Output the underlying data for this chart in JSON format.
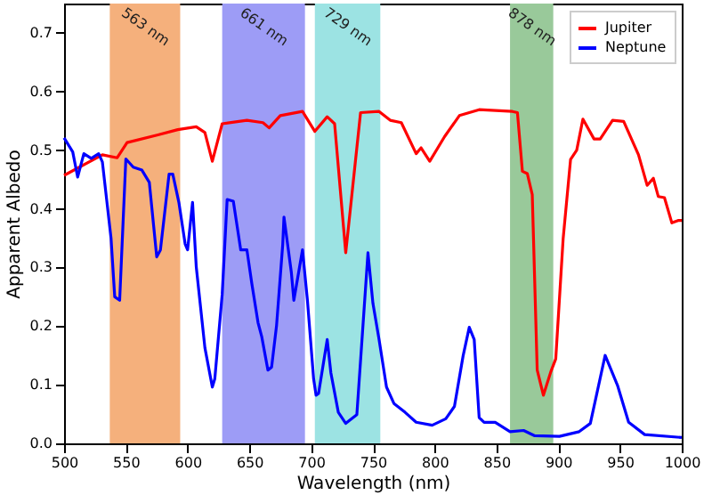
{
  "chart_data": {
    "type": "line",
    "xlabel": "Wavelength (nm)",
    "ylabel": "Apparent Albedo",
    "xlim": [
      500,
      1000
    ],
    "xticks": [
      500,
      550,
      600,
      650,
      700,
      750,
      800,
      850,
      900,
      950,
      {
        "value": 1000,
        "label": "1000"
      }
    ],
    "ylim": [
      0,
      0.75
    ],
    "yticks": [
      {
        "value": 0,
        "label": "0.0"
      },
      0.1,
      0.2,
      0.3,
      0.4,
      0.5,
      0.6,
      0.7
    ],
    "grid": false,
    "legend": "top right",
    "line_style": "solid",
    "marker": "none",
    "bands": [
      {
        "axis": "x",
        "from": 537,
        "to": 594,
        "label": "563 nm",
        "color": "#f5b07c"
      },
      {
        "axis": "x",
        "from": 628,
        "to": 695,
        "label": "661 nm",
        "color": "#9d9cf6"
      },
      {
        "axis": "x",
        "from": 703,
        "to": 756,
        "label": "729 nm",
        "color": "#9ce3e3"
      },
      {
        "axis": "x",
        "from": 861,
        "to": 896,
        "label": "878 nm",
        "color": "#99c99a"
      }
    ],
    "series": [
      {
        "name": "Jupiter",
        "color": "#ff0000",
        "x": [
          500,
          531,
          543,
          551,
          576,
          592,
          607,
          614,
          620,
          628,
          648,
          661,
          666,
          675,
          693,
          703,
          713,
          719,
          728,
          740,
          755,
          764,
          773,
          785,
          789,
          796,
          808,
          820,
          836,
          863,
          867,
          871,
          875,
          879,
          883,
          888,
          894,
          898,
          904,
          910,
          915,
          920,
          929,
          934,
          944,
          953,
          965,
          972,
          977,
          981,
          986,
          992,
          997,
          1000
        ],
        "values": [
          0.457,
          0.492,
          0.487,
          0.513,
          0.526,
          0.535,
          0.54,
          0.53,
          0.481,
          0.545,
          0.551,
          0.547,
          0.538,
          0.559,
          0.566,
          0.532,
          0.557,
          0.545,
          0.325,
          0.564,
          0.566,
          0.551,
          0.547,
          0.494,
          0.504,
          0.481,
          0.523,
          0.559,
          0.569,
          0.566,
          0.564,
          0.464,
          0.46,
          0.424,
          0.125,
          0.082,
          0.122,
          0.144,
          0.349,
          0.484,
          0.5,
          0.553,
          0.519,
          0.519,
          0.551,
          0.549,
          0.492,
          0.44,
          0.452,
          0.421,
          0.419,
          0.376,
          0.38,
          0.38
        ]
      },
      {
        "name": "Neptune",
        "color": "#0000ff",
        "x": [
          500,
          507,
          511,
          516,
          522,
          528,
          531,
          538,
          541,
          545,
          550,
          556,
          563,
          569,
          575,
          578,
          585,
          588,
          593,
          598,
          600,
          604,
          607,
          614,
          620,
          622,
          628,
          632,
          637,
          643,
          648,
          652,
          657,
          660,
          665,
          668,
          672,
          677,
          678,
          684,
          686,
          693,
          697,
          702,
          704,
          706,
          713,
          716,
          722,
          728,
          737,
          746,
          750,
          755,
          761,
          767,
          776,
          785,
          798,
          809,
          816,
          823,
          828,
          832,
          836,
          840,
          849,
          861,
          872,
          881,
          901,
          917,
          926,
          938,
          948,
          957,
          970,
          1000
        ],
        "values": [
          0.521,
          0.497,
          0.454,
          0.494,
          0.486,
          0.494,
          0.48,
          0.35,
          0.25,
          0.244,
          0.485,
          0.471,
          0.466,
          0.445,
          0.318,
          0.33,
          0.459,
          0.459,
          0.41,
          0.34,
          0.33,
          0.411,
          0.301,
          0.163,
          0.096,
          0.11,
          0.254,
          0.416,
          0.413,
          0.33,
          0.33,
          0.272,
          0.206,
          0.182,
          0.125,
          0.13,
          0.201,
          0.339,
          0.386,
          0.291,
          0.244,
          0.33,
          0.244,
          0.11,
          0.082,
          0.085,
          0.177,
          0.12,
          0.053,
          0.034,
          0.049,
          0.325,
          0.239,
          0.177,
          0.096,
          0.068,
          0.053,
          0.036,
          0.031,
          0.042,
          0.063,
          0.149,
          0.198,
          0.177,
          0.044,
          0.036,
          0.036,
          0.02,
          0.022,
          0.013,
          0.012,
          0.02,
          0.034,
          0.15,
          0.099,
          0.036,
          0.015,
          0.01
        ]
      }
    ]
  }
}
